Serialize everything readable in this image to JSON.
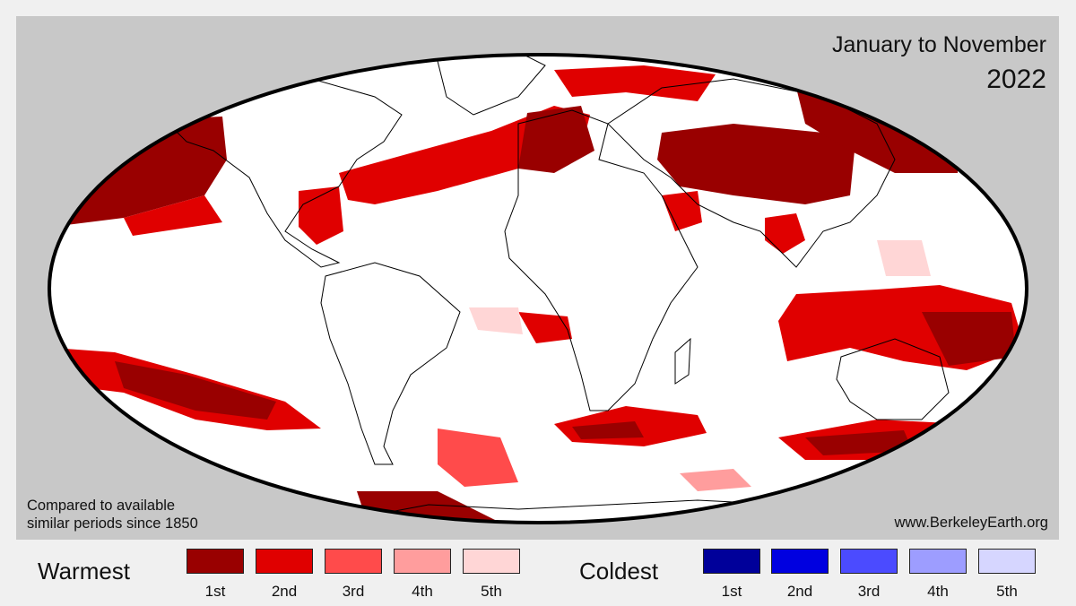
{
  "title": {
    "period": "January to November",
    "year": "2022"
  },
  "note": {
    "line1": "Compared to available",
    "line2": "similar periods since 1850"
  },
  "credit": "www.BerkeleyEarth.org",
  "legend": {
    "warm": {
      "label": "Warmest",
      "items": [
        {
          "rank": "1st",
          "color": "#990000"
        },
        {
          "rank": "2nd",
          "color": "#e00000"
        },
        {
          "rank": "3rd",
          "color": "#ff4b4b"
        },
        {
          "rank": "4th",
          "color": "#ff9d9d"
        },
        {
          "rank": "5th",
          "color": "#ffd6d6"
        }
      ]
    },
    "cold": {
      "label": "Coldest",
      "items": [
        {
          "rank": "1st",
          "color": "#00009a"
        },
        {
          "rank": "2nd",
          "color": "#0000e0"
        },
        {
          "rank": "3rd",
          "color": "#4b4bff"
        },
        {
          "rank": "4th",
          "color": "#9d9dff"
        },
        {
          "rank": "5th",
          "color": "#d6d6ff"
        }
      ]
    }
  },
  "colors": {
    "background": "#c8c8c8",
    "ocean_land": "#ffffff",
    "outline": "#000000"
  }
}
